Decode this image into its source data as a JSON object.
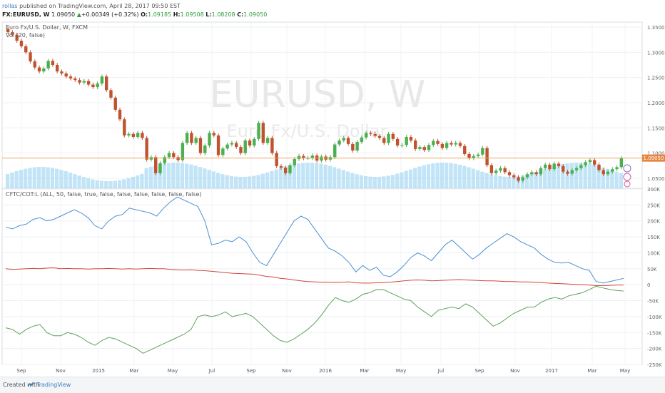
{
  "header": {
    "author": "rollas",
    "published_text": "published on TradingView.com, April 28, 2017 09:50 EST",
    "symbol": "FX:EURUSD, W",
    "last": "1.09050",
    "change_arrow": "▲",
    "change": "+0.00349 (+0.32%)",
    "o_label": "O:",
    "o_value": "1.09185",
    "h_label": "H:",
    "h_value": "1.09508",
    "l_label": "L:",
    "l_value": "1.08208",
    "c_label": "C:",
    "c_value": "1.09050"
  },
  "price_pane": {
    "legend_title": "Euro Fx/U.S. Dollar, W, FXCM",
    "legend_volume": "Vol (20, false)",
    "watermark_symbol": "EURUSD, W",
    "watermark_name": "Euro Fx/U.S. Dollar",
    "current_price_label": "1.09050",
    "y_ticks": [
      "1.35000",
      "1.30000",
      "1.25000",
      "1.20000",
      "1.15000",
      "1.10000",
      "1.05000"
    ]
  },
  "cot_pane": {
    "legend": "CFTC/COT:L (ALL, 50, false, true, false, false, false, false, false, false)",
    "y_ticks": [
      "300K",
      "250K",
      "200K",
      "150K",
      "100K",
      "50K",
      "0",
      "-50K",
      "-100K",
      "-150K",
      "-200K",
      "-250K"
    ]
  },
  "x_ticks": [
    "Sep",
    "Nov",
    "2015",
    "Mar",
    "May",
    "Jul",
    "Sep",
    "Nov",
    "2016",
    "Mar",
    "May",
    "Jul",
    "Sep",
    "Nov",
    "2017",
    "Mar",
    "May"
  ],
  "footer": {
    "created_with": "Created with",
    "brand": "TradingView"
  },
  "colors": {
    "up": "#4caf50",
    "down": "#c0532f",
    "volume": "#8fcdf0",
    "cot_blue": "#4a8fd1",
    "cot_red": "#d0453b",
    "cot_green": "#5fa05a"
  },
  "chart_data": [
    {
      "type": "candlestick",
      "title": "Euro Fx/U.S. Dollar, W, FXCM",
      "ylim": [
        1.03,
        1.36
      ],
      "x_range": [
        "2014-08",
        "2017-05"
      ],
      "close": [
        1.34,
        1.335,
        1.323,
        1.312,
        1.3,
        1.282,
        1.27,
        1.262,
        1.268,
        1.283,
        1.275,
        1.262,
        1.258,
        1.252,
        1.248,
        1.245,
        1.24,
        1.243,
        1.236,
        1.231,
        1.238,
        1.252,
        1.225,
        1.21,
        1.186,
        1.167,
        1.135,
        1.138,
        1.132,
        1.14,
        1.13,
        1.087,
        1.092,
        1.06,
        1.08,
        1.092,
        1.1,
        1.092,
        1.086,
        1.12,
        1.14,
        1.12,
        1.13,
        1.1,
        1.115,
        1.14,
        1.135,
        1.096,
        1.109,
        1.117,
        1.12,
        1.112,
        1.1,
        1.125,
        1.115,
        1.128,
        1.16,
        1.12,
        1.13,
        1.1,
        1.074,
        1.071,
        1.06,
        1.076,
        1.088,
        1.094,
        1.09,
        1.09,
        1.095,
        1.085,
        1.093,
        1.087,
        1.092,
        1.117,
        1.125,
        1.13,
        1.118,
        1.105,
        1.122,
        1.131,
        1.14,
        1.138,
        1.134,
        1.13,
        1.12,
        1.138,
        1.128,
        1.115,
        1.116,
        1.132,
        1.125,
        1.108,
        1.112,
        1.106,
        1.116,
        1.124,
        1.118,
        1.11,
        1.12,
        1.117,
        1.12,
        1.114,
        1.098,
        1.09,
        1.094,
        1.097,
        1.11,
        1.076,
        1.06,
        1.065,
        1.07,
        1.062,
        1.056,
        1.052,
        1.045,
        1.052,
        1.058,
        1.062,
        1.058,
        1.07,
        1.077,
        1.068,
        1.079,
        1.074,
        1.063,
        1.059,
        1.066,
        1.07,
        1.076,
        1.082,
        1.086,
        1.077,
        1.066,
        1.058,
        1.063,
        1.068,
        1.072,
        1.09
      ]
    },
    {
      "type": "line",
      "title": "CFTC/COT:L (ALL, 50, false, true, false, false, false, false, false, false)",
      "ylim": [
        -250000,
        300000
      ],
      "series": [
        {
          "values": [
            180000,
            175000,
            185000,
            190000,
            205000,
            210000,
            200000,
            205000,
            215000,
            225000,
            235000,
            225000,
            210000,
            185000,
            175000,
            200000,
            215000,
            220000,
            240000,
            235000,
            230000,
            225000,
            215000,
            240000,
            260000,
            275000,
            265000,
            255000,
            245000,
            200000,
            125000,
            130000,
            140000,
            135000,
            150000,
            135000,
            100000,
            70000,
            60000,
            95000,
            130000,
            165000,
            200000,
            215000,
            205000,
            175000,
            145000,
            115000,
            105000,
            90000,
            70000,
            40000,
            60000,
            45000,
            55000,
            30000,
            25000,
            40000,
            60000,
            85000,
            100000,
            90000,
            75000,
            100000,
            125000,
            140000,
            120000,
            100000,
            80000,
            95000,
            115000,
            130000,
            145000,
            160000,
            150000,
            135000,
            125000,
            115000,
            95000,
            80000,
            70000,
            68000,
            70000,
            60000,
            50000,
            45000,
            10000,
            5000,
            10000,
            15000,
            20000
          ]
        },
        {
          "values": [
            50000,
            48000,
            49000,
            50000,
            51000,
            50000,
            52000,
            53000,
            50000,
            51000,
            50000,
            50000,
            49000,
            50000,
            50000,
            51000,
            50000,
            49000,
            50000,
            49000,
            50000,
            51000,
            50000,
            50000,
            48000,
            47000,
            46000,
            47000,
            45000,
            44000,
            42000,
            40000,
            38000,
            36000,
            35000,
            34000,
            33000,
            30000,
            26000,
            24000,
            20000,
            18000,
            15000,
            12000,
            10000,
            9000,
            8000,
            8000,
            7000,
            8000,
            9000,
            6000,
            5000,
            5000,
            6000,
            7000,
            8000,
            10000,
            12000,
            14000,
            15000,
            14000,
            12000,
            13000,
            14000,
            15000,
            16000,
            15000,
            14000,
            13000,
            12000,
            12000,
            11000,
            10000,
            10000,
            9000,
            9000,
            8000,
            7000,
            5000,
            4000,
            3000,
            2000,
            1000,
            0,
            -1000,
            -3000,
            -3000,
            -2000,
            -1000,
            -1000
          ]
        },
        {
          "values": [
            -135000,
            -140000,
            -155000,
            -140000,
            -130000,
            -125000,
            -150000,
            -160000,
            -160000,
            -150000,
            -155000,
            -165000,
            -180000,
            -190000,
            -175000,
            -165000,
            -170000,
            -180000,
            -190000,
            -200000,
            -215000,
            -205000,
            -195000,
            -185000,
            -175000,
            -165000,
            -155000,
            -140000,
            -100000,
            -95000,
            -100000,
            -95000,
            -85000,
            -100000,
            -95000,
            -90000,
            -100000,
            -120000,
            -140000,
            -160000,
            -175000,
            -180000,
            -170000,
            -155000,
            -140000,
            -120000,
            -95000,
            -65000,
            -40000,
            -50000,
            -55000,
            -45000,
            -30000,
            -25000,
            -15000,
            -15000,
            -25000,
            -35000,
            -45000,
            -50000,
            -70000,
            -85000,
            -100000,
            -80000,
            -75000,
            -70000,
            -75000,
            -60000,
            -70000,
            -90000,
            -110000,
            -130000,
            -120000,
            -105000,
            -90000,
            -80000,
            -70000,
            -70000,
            -55000,
            -45000,
            -40000,
            -45000,
            -35000,
            -30000,
            -25000,
            -15000,
            -5000,
            -10000,
            -15000,
            -18000,
            -20000
          ]
        }
      ]
    }
  ]
}
